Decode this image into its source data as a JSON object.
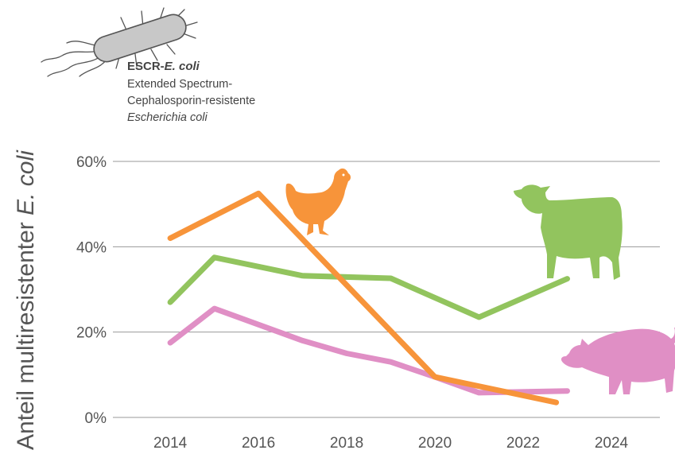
{
  "info_box": {
    "title_prefix": "ESCR-",
    "title_italic": "E. coli",
    "line1": "Extended Spectrum-",
    "line2": "Cephalosporin-resistente",
    "line3": "Escherichia coli"
  },
  "chart_data": {
    "type": "line",
    "ylabel_prefix": "Anteil multiresistenter ",
    "ylabel_italic": "E. coli",
    "xlabel": "",
    "xlim": [
      2012.7,
      2025.1
    ],
    "ylim": [
      0,
      60
    ],
    "x_ticks": [
      2014,
      2016,
      2018,
      2020,
      2022,
      2024
    ],
    "y_ticks": [
      0,
      20,
      40,
      60
    ],
    "y_tick_labels": [
      "0%",
      "20%",
      "40%",
      "60%"
    ],
    "grid": "horizontal",
    "series": [
      {
        "color": "#f7943a",
        "icon": "chicken-icon",
        "x": [
          2014,
          2016,
          2020,
          2022.75
        ],
        "y": [
          42,
          52.5,
          9.5,
          3.5
        ]
      },
      {
        "color": "#92c45e",
        "icon": "cow-icon",
        "x": [
          2014,
          2015,
          2017,
          2019,
          2021,
          2023
        ],
        "y": [
          27,
          37.5,
          33.2,
          32.6,
          23.5,
          32.5
        ]
      },
      {
        "color": "#e08fc5",
        "icon": "pig-icon",
        "x": [
          2014,
          2015,
          2017,
          2018,
          2019,
          2020,
          2021,
          2023
        ],
        "y": [
          17.5,
          25.5,
          18,
          15,
          13,
          9.5,
          5.8,
          6.2
        ]
      }
    ]
  }
}
